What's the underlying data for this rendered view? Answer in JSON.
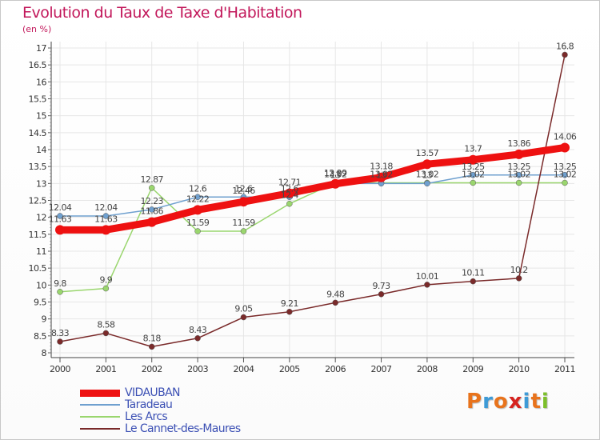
{
  "title": "Evolution du Taux de Taxe d'Habitation",
  "unit_label": "(en %)",
  "logo": {
    "letters": [
      "P",
      "r",
      "o",
      "x",
      "i",
      "t",
      "i"
    ],
    "colors": [
      "#e8731c",
      "#3d9ad6",
      "#e8731c",
      "#d6231f",
      "#3d9ad6",
      "#e8731c",
      "#7cbf2a"
    ]
  },
  "chart_data": {
    "type": "line",
    "title": "Evolution du Taux de Taxe d'Habitation",
    "ylabel": "(en %)",
    "xlabel": "",
    "x": [
      "2000",
      "2001",
      "2002",
      "2003",
      "2004",
      "2005",
      "2006",
      "2007",
      "2008",
      "2009",
      "2010",
      "2011"
    ],
    "ylim": [
      8,
      17
    ],
    "yticks": [
      "8",
      "8.5",
      "9",
      "9.5",
      "10",
      "10.5",
      "11",
      "11.5",
      "12",
      "12.5",
      "13",
      "13.5",
      "14",
      "14.5",
      "15",
      "15.5",
      "16",
      "16.5",
      "17"
    ],
    "grid": true,
    "legend_position": "bottom-left",
    "series": [
      {
        "name": "VIDAUBAN",
        "color": "#ee1111",
        "values": [
          11.63,
          11.63,
          11.86,
          12.22,
          12.46,
          12.71,
          12.99,
          13.18,
          13.57,
          13.7,
          13.86,
          14.06
        ],
        "labels": [
          "11.63",
          "11.63",
          "11.86",
          "12.22",
          "12.46",
          "12.71",
          "12.99",
          "13.18",
          "13.57",
          "13.7",
          "13.86",
          "14.06"
        ]
      },
      {
        "name": "Taradeau",
        "color": "#6fa0cf",
        "values": [
          12.04,
          12.04,
          12.23,
          12.6,
          12.6,
          12.6,
          13,
          13,
          13,
          13.25,
          13.25,
          13.25
        ],
        "labels": [
          "12.04",
          "12.04",
          "12.23",
          "12.6",
          "12.6",
          "12.6",
          "13",
          "13",
          "13",
          "13.25",
          "13.25",
          "13.25"
        ]
      },
      {
        "name": "Les Arcs",
        "color": "#9ad66e",
        "values": [
          9.8,
          9.9,
          12.87,
          11.59,
          11.59,
          12.4,
          13.02,
          13.02,
          13.02,
          13.02,
          13.02,
          13.02
        ],
        "labels": [
          "9.8",
          "9.9",
          "12.87",
          "11.59",
          "11.59",
          "12.4",
          "13.02",
          "13.02",
          "13.02",
          "13.02",
          "13.02",
          "13.02"
        ]
      },
      {
        "name": "Le Cannet-des-Maures",
        "color": "#7a2a2a",
        "values": [
          8.33,
          8.58,
          8.18,
          8.43,
          9.05,
          9.21,
          9.48,
          9.73,
          10.01,
          10.11,
          10.2,
          16.8
        ],
        "labels": [
          "8.33",
          "8.58",
          "8.18",
          "8.43",
          "9.05",
          "9.21",
          "9.48",
          "9.73",
          "10.01",
          "10.11",
          "10.2",
          "16.8"
        ]
      }
    ]
  }
}
